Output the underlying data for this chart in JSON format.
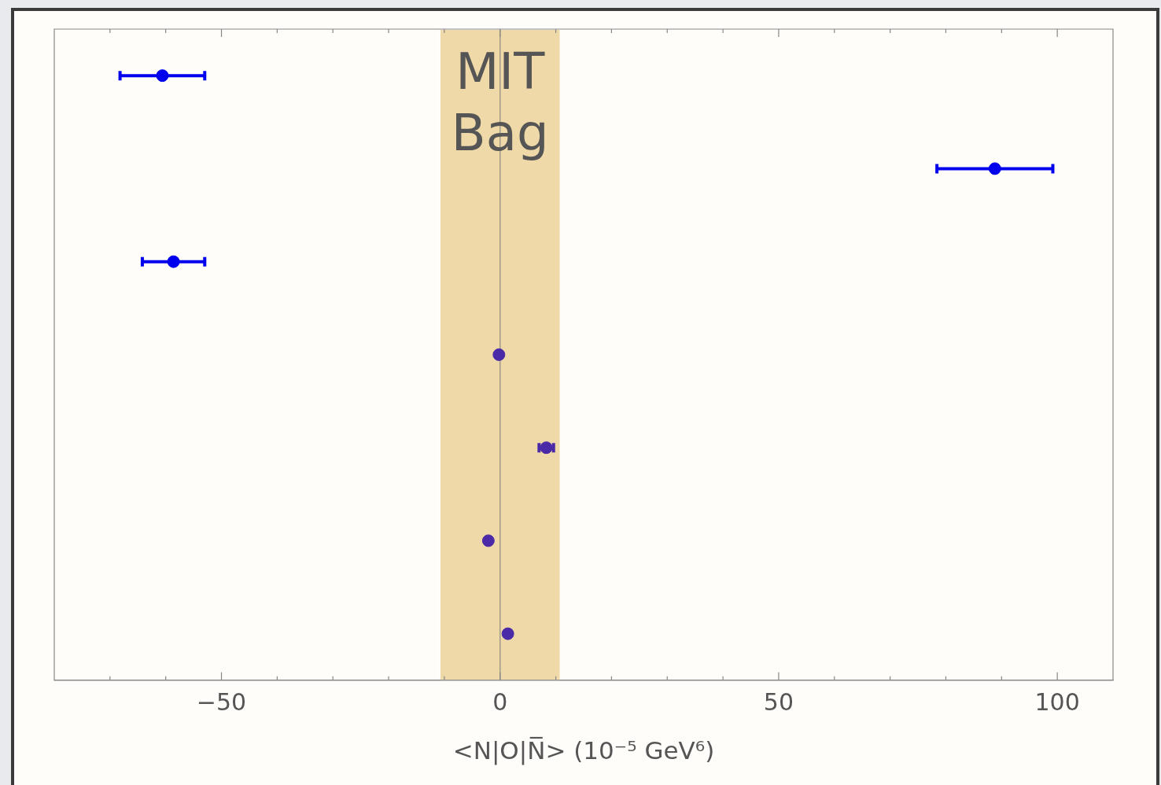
{
  "chart_data": {
    "type": "scatter",
    "orientation": "horizontal",
    "categories": [
      null,
      null,
      null,
      null,
      null,
      null,
      null
    ],
    "values": [
      -60.6,
      88.8,
      -58.6,
      -0.2,
      8.3,
      -2.1,
      1.4
    ],
    "errors": [
      7.6,
      10.4,
      5.6,
      null,
      1.3,
      null,
      null
    ],
    "colors": [
      "#0000ee",
      "#0000ee",
      "#0000ee",
      "#4b2aa8",
      "#4b2aa8",
      "#4b2aa8",
      "#4b2aa8"
    ],
    "xlabel": "<N|O|N̅> (10⁻⁵ GeV⁶)",
    "xlim": [
      -80,
      110
    ],
    "xticks": [
      {
        "value": -70,
        "label": null
      },
      {
        "value": -60,
        "label": null
      },
      -50,
      {
        "value": -40,
        "label": null
      },
      {
        "value": -30,
        "label": null
      },
      {
        "value": -20,
        "label": null
      },
      {
        "value": -10,
        "label": null
      },
      0,
      {
        "value": 10,
        "label": null
      },
      {
        "value": 20,
        "label": null
      },
      {
        "value": 30,
        "label": null
      },
      {
        "value": 40,
        "label": null
      },
      50,
      {
        "value": 60,
        "label": null
      },
      {
        "value": 70,
        "label": null
      },
      {
        "value": 80,
        "label": null
      },
      {
        "value": 90,
        "label": null
      },
      100
    ],
    "bands": [
      {
        "axis": "x",
        "from": -10.7,
        "to": 10.7,
        "label": "MIT Bag",
        "color": "#f0d9a8"
      }
    ],
    "ref_lines": [
      {
        "axis": "x",
        "value": 0,
        "color": "#a09a8a"
      }
    ],
    "marker": "circle",
    "grid": false,
    "legend": false,
    "tick_labels": "x"
  }
}
